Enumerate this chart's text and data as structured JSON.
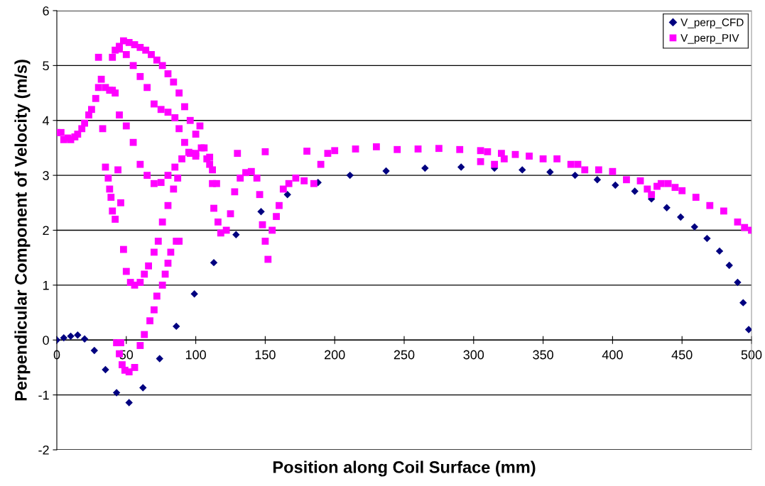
{
  "chart_data": {
    "type": "scatter",
    "xlabel": "Position along Coil Surface (mm)",
    "ylabel": "Perpendicular Component of Velocity (m/s)",
    "xlim": [
      0,
      500
    ],
    "xticks": [
      0,
      50,
      100,
      150,
      200,
      250,
      300,
      350,
      400,
      450,
      500
    ],
    "ylim": [
      -2,
      6
    ],
    "yticks": [
      -2,
      -1,
      0,
      1,
      2,
      3,
      4,
      5,
      6
    ],
    "grid": "y",
    "legend": "top right",
    "series": [
      {
        "name": "V_perp_CFD",
        "color": "#000080",
        "marker": "diamond",
        "x": [
          0,
          5,
          10,
          15,
          20,
          27,
          35,
          43,
          52,
          62,
          74,
          86,
          99,
          113,
          129,
          147,
          166,
          188,
          211,
          237,
          265,
          291,
          315,
          335,
          355,
          373,
          389,
          402,
          416,
          428,
          439,
          449,
          459,
          468,
          477,
          484,
          490,
          494,
          498
        ],
        "values": [
          0,
          0.04,
          0.07,
          0.09,
          0.02,
          -0.19,
          -0.54,
          -0.96,
          -1.14,
          -0.87,
          -0.34,
          0.25,
          0.84,
          1.41,
          1.92,
          2.34,
          2.65,
          2.87,
          3.0,
          3.08,
          3.13,
          3.15,
          3.13,
          3.1,
          3.06,
          3.0,
          2.92,
          2.82,
          2.71,
          2.57,
          2.41,
          2.24,
          2.06,
          1.85,
          1.62,
          1.36,
          1.05,
          0.68,
          0.19
        ]
      },
      {
        "name": "V_perp_PIV",
        "color": "#ff00ff",
        "marker": "square",
        "x": [
          0,
          3,
          5,
          8,
          10,
          13,
          15,
          18,
          20,
          23,
          25,
          28,
          30,
          32,
          35,
          38,
          40,
          42,
          30,
          40,
          42,
          45,
          48,
          52,
          56,
          60,
          64,
          68,
          72,
          76,
          80,
          84,
          88,
          92,
          96,
          100,
          104,
          108,
          112,
          115,
          45,
          50,
          55,
          60,
          65,
          70,
          75,
          80,
          85,
          88,
          92,
          96,
          100,
          45,
          50,
          55,
          60,
          65,
          70,
          75,
          80,
          85,
          90,
          95,
          100,
          110,
          130,
          150,
          180,
          200,
          215,
          230,
          245,
          260,
          275,
          290,
          310,
          330,
          350,
          370,
          380,
          390,
          400,
          410,
          420,
          425,
          428,
          432,
          435,
          440,
          445,
          450,
          460,
          470,
          480,
          490,
          495,
          500,
          305,
          320,
          340,
          360,
          375,
          305,
          315,
          322,
          33,
          35,
          37,
          38,
          39,
          40,
          42,
          44,
          46,
          48,
          50,
          53,
          56,
          60,
          63,
          66,
          70,
          73,
          76,
          80,
          84,
          87,
          43,
          46,
          45,
          47,
          49,
          52,
          56,
          60,
          63,
          67,
          70,
          72,
          76,
          78,
          80,
          82,
          86,
          88,
          113,
          116,
          118,
          122,
          125,
          128,
          132,
          136,
          140,
          144,
          146,
          148,
          150,
          152,
          155,
          158,
          160,
          163,
          167,
          172,
          178,
          185,
          190,
          195,
          103,
          106,
          110,
          112
        ],
        "values": [
          3.78,
          3.78,
          3.65,
          3.68,
          3.65,
          3.7,
          3.75,
          3.85,
          3.95,
          4.1,
          4.2,
          4.4,
          4.6,
          4.75,
          4.6,
          4.55,
          4.55,
          4.5,
          5.15,
          5.15,
          5.28,
          5.35,
          5.45,
          5.42,
          5.38,
          5.33,
          5.28,
          5.2,
          5.1,
          5.0,
          4.85,
          4.7,
          4.5,
          4.25,
          4.0,
          3.75,
          3.5,
          3.3,
          3.1,
          2.85,
          5.3,
          5.2,
          5.0,
          4.8,
          4.6,
          4.3,
          4.2,
          4.15,
          4.05,
          3.85,
          3.6,
          3.4,
          3.35,
          4.1,
          3.9,
          3.6,
          3.2,
          3.0,
          2.85,
          2.87,
          3.0,
          3.15,
          3.3,
          3.42,
          3.4,
          3.33,
          3.4,
          3.43,
          3.44,
          3.45,
          3.48,
          3.52,
          3.47,
          3.48,
          3.49,
          3.47,
          3.43,
          3.38,
          3.3,
          3.2,
          3.1,
          3.1,
          3.07,
          2.92,
          2.9,
          2.75,
          2.65,
          2.8,
          2.85,
          2.85,
          2.78,
          2.72,
          2.6,
          2.45,
          2.35,
          2.15,
          2.05,
          2.0,
          3.45,
          3.4,
          3.35,
          3.3,
          3.2,
          3.25,
          3.2,
          3.3,
          3.85,
          3.15,
          2.95,
          2.75,
          2.6,
          2.35,
          2.2,
          3.1,
          2.5,
          1.65,
          1.25,
          1.05,
          1.0,
          1.05,
          1.2,
          1.35,
          1.6,
          1.8,
          2.15,
          2.45,
          2.75,
          2.95,
          -0.05,
          -0.05,
          -0.25,
          -0.45,
          -0.55,
          -0.58,
          -0.5,
          -0.1,
          0.1,
          0.35,
          0.55,
          0.8,
          1.0,
          1.2,
          1.4,
          1.6,
          1.8,
          1.8,
          2.4,
          2.15,
          1.95,
          2.0,
          2.3,
          2.7,
          2.95,
          3.05,
          3.07,
          2.95,
          2.65,
          2.1,
          1.8,
          1.47,
          2.0,
          2.25,
          2.45,
          2.75,
          2.85,
          2.95,
          2.9,
          2.85,
          3.2,
          3.4,
          3.9,
          3.5,
          3.2,
          2.85
        ]
      }
    ]
  }
}
